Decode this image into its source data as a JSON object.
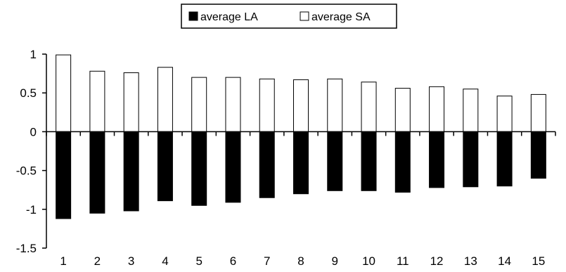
{
  "chart_data": {
    "type": "bar",
    "categories": [
      "1",
      "2",
      "3",
      "4",
      "5",
      "6",
      "7",
      "8",
      "9",
      "10",
      "11",
      "12",
      "13",
      "14",
      "15"
    ],
    "series": [
      {
        "name": "average LA",
        "color": "#000000",
        "values": [
          -1.12,
          -1.05,
          -1.02,
          -0.89,
          -0.95,
          -0.91,
          -0.85,
          -0.8,
          -0.76,
          -0.76,
          -0.78,
          -0.72,
          -0.71,
          -0.7,
          -0.6
        ]
      },
      {
        "name": "average SA",
        "color": "#ffffff",
        "values": [
          0.99,
          0.78,
          0.76,
          0.83,
          0.7,
          0.7,
          0.68,
          0.67,
          0.68,
          0.64,
          0.56,
          0.58,
          0.55,
          0.46,
          0.48
        ]
      }
    ],
    "ylim": [
      -1.5,
      1
    ],
    "yticks": [
      "-1.5",
      "-1",
      "-0.5",
      "0",
      "0.5",
      "1"
    ],
    "legend_position": "top-center",
    "grid": false,
    "title": "",
    "xlabel": "",
    "ylabel": ""
  }
}
